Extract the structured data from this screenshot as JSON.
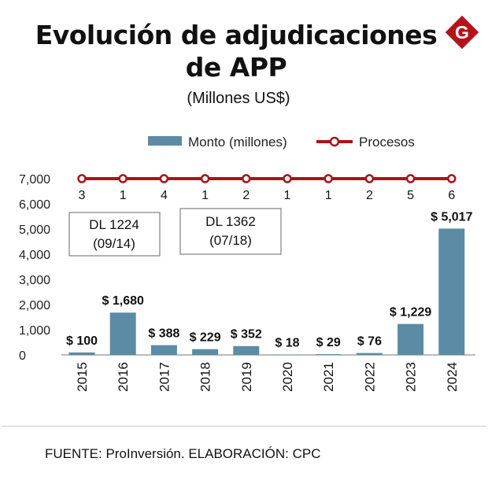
{
  "header": {
    "title_line1": "Evolución de adjudicaciones",
    "title_line2": "de APP",
    "subtitle": "(Millones US$)",
    "logo_letter": "G"
  },
  "footer": {
    "source": "FUENTE: ProInversión. ELABORACIÓN: CPC"
  },
  "colors": {
    "bar": "#5b8ba5",
    "line": "#a8141c",
    "logo": "#b5131b"
  },
  "chart_data": {
    "type": "bar",
    "title": "Evolución de adjudicaciones de APP",
    "subtitle": "(Millones US$)",
    "xlabel": "",
    "ylabel": "",
    "ylim": [
      0,
      7000
    ],
    "yticks": [
      "0",
      "1,000",
      "2,000",
      "3,000",
      "4,000",
      "5,000",
      "6,000",
      "7,000"
    ],
    "categories": [
      "2015",
      "2016",
      "2017",
      "2018",
      "2019",
      "2020",
      "2021",
      "2022",
      "2023",
      "2024"
    ],
    "series": [
      {
        "name": "Monto (millones)",
        "type": "bar",
        "values": [
          100,
          1680,
          388,
          229,
          352,
          18,
          29,
          76,
          1229,
          5017
        ],
        "labels": [
          "$ 100",
          "$ 1,680",
          "$ 388",
          "$ 229",
          "$ 352",
          "$ 18",
          "$ 29",
          "$ 76",
          "$ 1,229",
          "$ 5,017"
        ]
      },
      {
        "name": "Procesos",
        "type": "line-markers",
        "values": [
          3,
          1,
          4,
          1,
          2,
          1,
          1,
          2,
          5,
          6
        ]
      }
    ],
    "legend": {
      "position": "top",
      "items": [
        "Monto (millones)",
        "Procesos"
      ]
    },
    "annotations": [
      {
        "line1": "DL 1224",
        "line2": "(09/14)",
        "category": "2016"
      },
      {
        "line1": "DL 1362",
        "line2": "(07/18)",
        "category": "2019"
      }
    ]
  }
}
